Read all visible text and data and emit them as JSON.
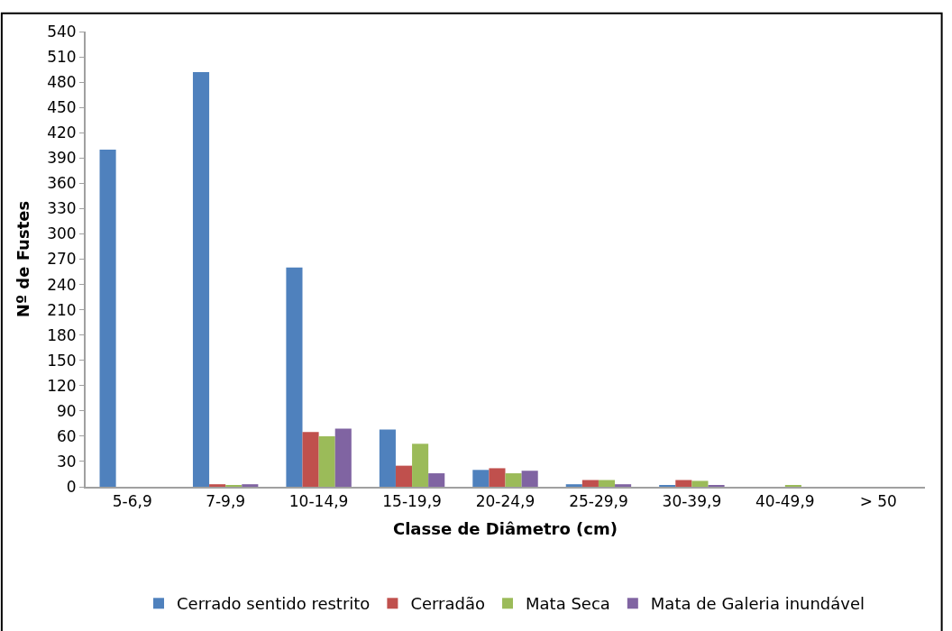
{
  "chart_data": {
    "type": "bar",
    "xlabel": "Classe de Diâmetro (cm)",
    "ylabel": "Nº de Fustes",
    "categories": [
      "5-6,9",
      "7-9,9",
      "10-14,9",
      "15-19,9",
      "20-24,9",
      "25-29,9",
      "30-39,9",
      "40-49,9",
      "> 50"
    ],
    "series": [
      {
        "name": "Cerrado sentido restrito",
        "color": "#4f81bd",
        "values": [
          400,
          492,
          260,
          68,
          20,
          3,
          2,
          0,
          0
        ]
      },
      {
        "name": "Cerradão",
        "color": "#c0504d",
        "values": [
          0,
          3,
          65,
          25,
          22,
          8,
          8,
          0,
          0
        ]
      },
      {
        "name": "Mata Seca",
        "color": "#9bbb59",
        "values": [
          0,
          2,
          60,
          51,
          16,
          8,
          7,
          2,
          0
        ]
      },
      {
        "name": "Mata de Galeria inundável",
        "color": "#8064a2",
        "values": [
          0,
          3,
          69,
          16,
          19,
          3,
          2,
          0,
          0
        ]
      }
    ],
    "ylim": [
      0,
      540
    ],
    "yticks": [
      0,
      30,
      60,
      90,
      120,
      150,
      180,
      210,
      240,
      270,
      300,
      330,
      360,
      390,
      420,
      450,
      480,
      510,
      540
    ],
    "grid": false,
    "legend": "bottom"
  }
}
